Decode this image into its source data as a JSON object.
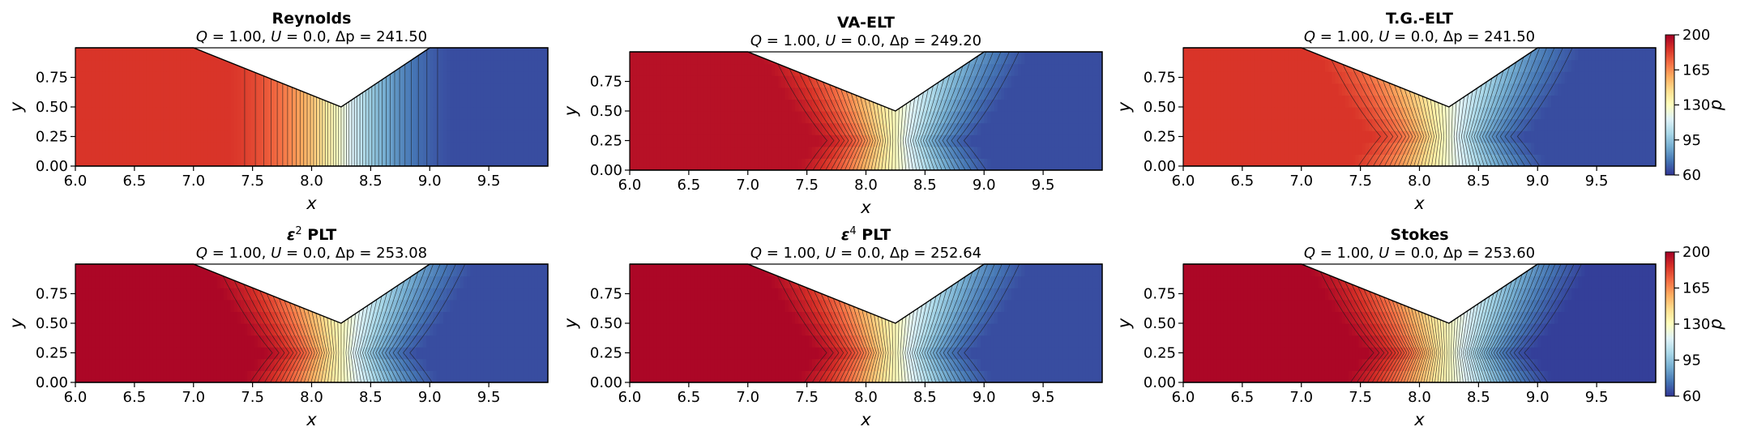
{
  "figure": {
    "colormap": "RdYlBu_r",
    "colors": [
      "#313695",
      "#4575b4",
      "#74add1",
      "#abd9e9",
      "#e0f3f8",
      "#ffffbf",
      "#fee090",
      "#fdae61",
      "#f46d43",
      "#d73027",
      "#a50026"
    ],
    "contour_color": "#1a1a1a",
    "colorbar": {
      "label": "p",
      "ticks": [
        "200",
        "165",
        "130",
        "95",
        "60"
      ],
      "vmin": 60,
      "vmax": 200
    }
  },
  "chart_data": [
    {
      "type": "heatmap",
      "title": "Reynolds",
      "subtitle_parts": {
        "q": "Q",
        "q_val": "1.00",
        "u": "U",
        "u_val": "0.0",
        "dp": "Δp",
        "dp_val": "241.50"
      },
      "Q": 1.0,
      "U": 0.0,
      "dp": 241.5,
      "xlabel": "x",
      "ylabel": "y",
      "xlim": [
        6.0,
        10.0
      ],
      "ylim": [
        0.0,
        1.0
      ],
      "xticks": [
        "6.0",
        "6.5",
        "7.0",
        "7.5",
        "8.0",
        "8.5",
        "9.0",
        "9.5"
      ],
      "yticks": [
        "0.00",
        "0.25",
        "0.50",
        "0.75"
      ],
      "geometry": {
        "throat_x": 8.25,
        "throat_y": 0.5,
        "left_top_x": 7.0,
        "right_top_x": 9.0,
        "top_y": 1.0
      },
      "field": {
        "p_left": 185,
        "p_right": 65,
        "model": "reynolds",
        "line_levels": 48
      }
    },
    {
      "type": "heatmap",
      "title": "VA-ELT",
      "subtitle_parts": {
        "q": "Q",
        "q_val": "1.00",
        "u": "U",
        "u_val": "0.0",
        "dp": "Δp",
        "dp_val": "249.20"
      },
      "Q": 1.0,
      "U": 0.0,
      "dp": 249.2,
      "xlabel": "x",
      "ylabel": "y",
      "xlim": [
        6.0,
        10.0
      ],
      "ylim": [
        0.0,
        1.0
      ],
      "xticks": [
        "6.0",
        "6.5",
        "7.0",
        "7.5",
        "8.0",
        "8.5",
        "9.0",
        "9.5"
      ],
      "yticks": [
        "0.00",
        "0.25",
        "0.50",
        "0.75"
      ],
      "geometry": {
        "throat_x": 8.25,
        "throat_y": 0.5,
        "left_top_x": 7.0,
        "right_top_x": 9.0,
        "top_y": 1.0
      },
      "field": {
        "p_left": 195,
        "p_right": 65,
        "model": "elt",
        "line_levels": 44
      }
    },
    {
      "type": "heatmap",
      "title": "T.G.-ELT",
      "subtitle_parts": {
        "q": "Q",
        "q_val": "1.00",
        "u": "U",
        "u_val": "0.0",
        "dp": "Δp",
        "dp_val": "241.50"
      },
      "Q": 1.0,
      "U": 0.0,
      "dp": 241.5,
      "xlabel": "x",
      "ylabel": "y",
      "xlim": [
        6.0,
        10.0
      ],
      "ylim": [
        0.0,
        1.0
      ],
      "xticks": [
        "6.0",
        "6.5",
        "7.0",
        "7.5",
        "8.0",
        "8.5",
        "9.0",
        "9.5"
      ],
      "yticks": [
        "0.00",
        "0.25",
        "0.50",
        "0.75"
      ],
      "geometry": {
        "throat_x": 8.25,
        "throat_y": 0.5,
        "left_top_x": 7.0,
        "right_top_x": 9.0,
        "top_y": 1.0
      },
      "field": {
        "p_left": 185,
        "p_right": 65,
        "model": "elt",
        "line_levels": 44
      }
    },
    {
      "type": "heatmap",
      "title_symbol": "ε",
      "title_sup": "2",
      "title_rest": " PLT",
      "subtitle_parts": {
        "q": "Q",
        "q_val": "1.00",
        "u": "U",
        "u_val": "0.0",
        "dp": "Δp",
        "dp_val": "253.08"
      },
      "Q": 1.0,
      "U": 0.0,
      "dp": 253.08,
      "xlabel": "x",
      "ylabel": "y",
      "xlim": [
        6.0,
        10.0
      ],
      "ylim": [
        0.0,
        1.0
      ],
      "xticks": [
        "6.0",
        "6.5",
        "7.0",
        "7.5",
        "8.0",
        "8.5",
        "9.0",
        "9.5"
      ],
      "yticks": [
        "0.00",
        "0.25",
        "0.50",
        "0.75"
      ],
      "geometry": {
        "throat_x": 8.25,
        "throat_y": 0.5,
        "left_top_x": 7.0,
        "right_top_x": 9.0,
        "top_y": 1.0
      },
      "field": {
        "p_left": 198,
        "p_right": 65,
        "model": "elt",
        "line_levels": 46
      }
    },
    {
      "type": "heatmap",
      "title_symbol": "ε",
      "title_sup": "4",
      "title_rest": " PLT",
      "subtitle_parts": {
        "q": "Q",
        "q_val": "1.00",
        "u": "U",
        "u_val": "0.0",
        "dp": "Δp",
        "dp_val": "252.64"
      },
      "Q": 1.0,
      "U": 0.0,
      "dp": 252.64,
      "xlabel": "x",
      "ylabel": "y",
      "xlim": [
        6.0,
        10.0
      ],
      "ylim": [
        0.0,
        1.0
      ],
      "xticks": [
        "6.0",
        "6.5",
        "7.0",
        "7.5",
        "8.0",
        "8.5",
        "9.0",
        "9.5"
      ],
      "yticks": [
        "0.00",
        "0.25",
        "0.50",
        "0.75"
      ],
      "geometry": {
        "throat_x": 8.25,
        "throat_y": 0.5,
        "left_top_x": 7.0,
        "right_top_x": 9.0,
        "top_y": 1.0
      },
      "field": {
        "p_left": 198,
        "p_right": 65,
        "model": "elt",
        "line_levels": 46
      }
    },
    {
      "type": "heatmap",
      "title": "Stokes",
      "subtitle_parts": {
        "q": "Q",
        "q_val": "1.00",
        "u": "U",
        "u_val": "0.0",
        "dp": "Δp",
        "dp_val": "253.60"
      },
      "Q": 1.0,
      "U": 0.0,
      "dp": 253.6,
      "xlabel": "x",
      "ylabel": "y",
      "xlim": [
        6.0,
        10.0
      ],
      "ylim": [
        0.0,
        1.0
      ],
      "xticks": [
        "6.0",
        "6.5",
        "7.0",
        "7.5",
        "8.0",
        "8.5",
        "9.0",
        "9.5"
      ],
      "yticks": [
        "0.00",
        "0.25",
        "0.50",
        "0.75"
      ],
      "geometry": {
        "throat_x": 8.25,
        "throat_y": 0.5,
        "left_top_x": 7.0,
        "right_top_x": 9.0,
        "top_y": 1.0
      },
      "field": {
        "p_left": 198,
        "p_right": 62,
        "model": "stokes",
        "line_levels": 60
      }
    }
  ]
}
